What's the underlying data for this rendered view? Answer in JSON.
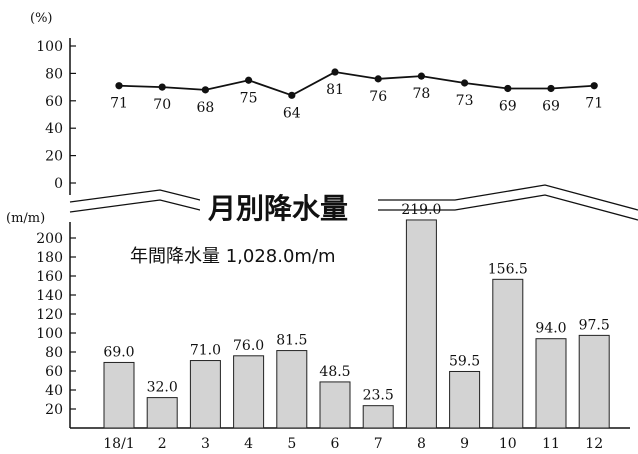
{
  "chart_data": [
    {
      "type": "line",
      "unit_label": "(%)",
      "categories": [
        "18/1",
        "2",
        "3",
        "4",
        "5",
        "6",
        "7",
        "8",
        "9",
        "10",
        "11",
        "12"
      ],
      "values": [
        71,
        70,
        68,
        75,
        64,
        81,
        76,
        78,
        73,
        69,
        69,
        71
      ],
      "ylim": [
        0,
        100
      ],
      "yticks": [
        0,
        20,
        40,
        60,
        80,
        100
      ]
    },
    {
      "type": "bar",
      "title": "月別降水量",
      "subtitle": "年間降水量 1,028.0m/m",
      "unit_label": "(m/m)",
      "categories": [
        "18/1",
        "2",
        "3",
        "4",
        "5",
        "6",
        "7",
        "8",
        "9",
        "10",
        "11",
        "12"
      ],
      "values": [
        69.0,
        32.0,
        71.0,
        76.0,
        81.5,
        48.5,
        23.5,
        219.0,
        59.5,
        156.5,
        94.0,
        97.5
      ],
      "value_labels": [
        "69.0",
        "32.0",
        "71.0",
        "76.0",
        "81.5",
        "48.5",
        "23.5",
        "219.0",
        "59.5",
        "156.5",
        "94.0",
        "97.5"
      ],
      "ylim": [
        0,
        220
      ],
      "yticks": [
        20,
        40,
        60,
        80,
        100,
        120,
        140,
        160,
        180,
        200
      ],
      "bar_color": "#d3d3d3"
    }
  ]
}
